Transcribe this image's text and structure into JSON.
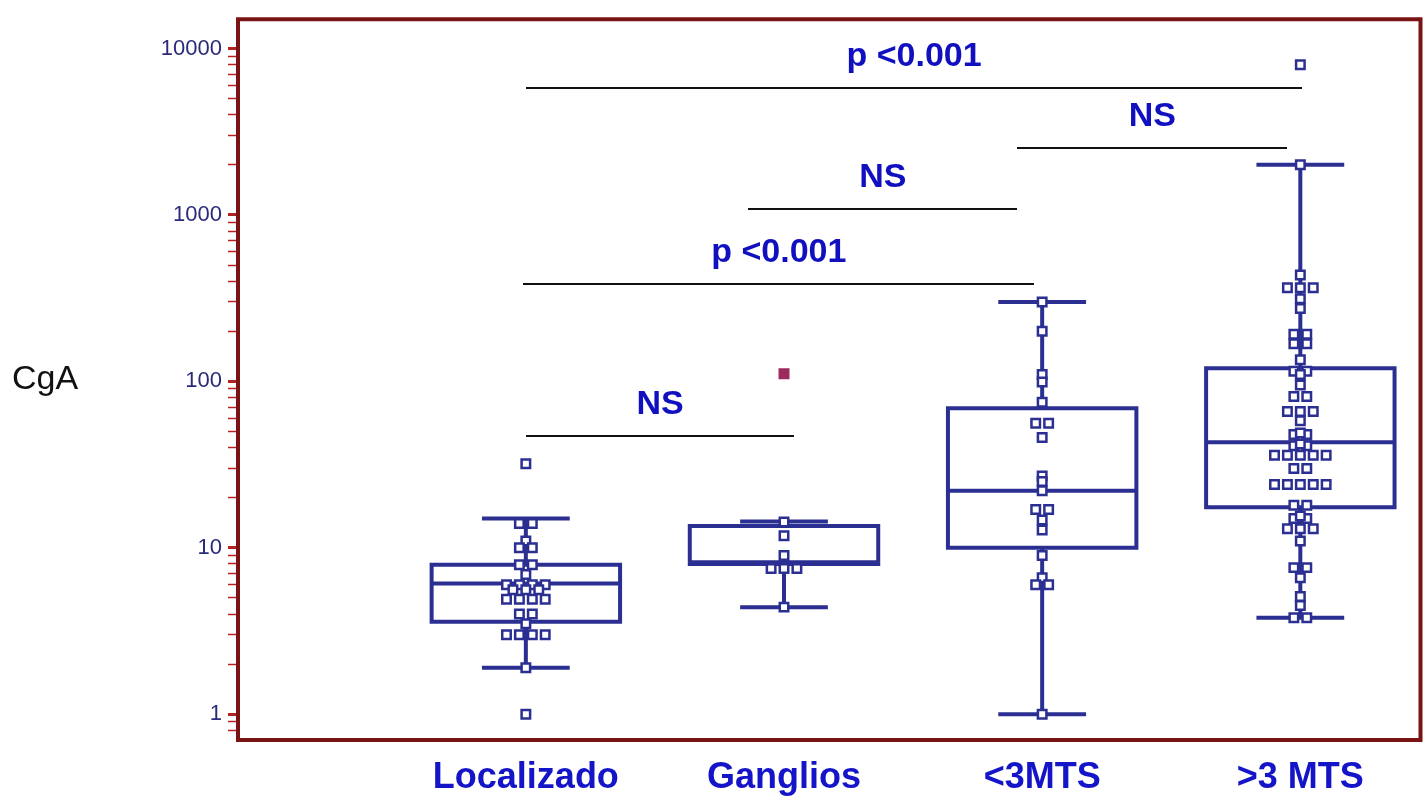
{
  "chart_data": {
    "type": "box",
    "ylabel": "CgA",
    "categories": [
      "Localizado",
      "Ganglios",
      "<3MTS",
      ">3 MTS"
    ],
    "color": "#2b2f91",
    "log": true,
    "marker": "square",
    "ylim": [
      0.7,
      15000
    ],
    "yticks": [
      {
        "value": 0.8,
        "label": null
      },
      {
        "value": 0.9,
        "label": null
      },
      1,
      {
        "value": 2,
        "label": null
      },
      {
        "value": 3,
        "label": null
      },
      {
        "value": 4,
        "label": null
      },
      {
        "value": 5,
        "label": null
      },
      {
        "value": 6,
        "label": null
      },
      {
        "value": 7,
        "label": null
      },
      {
        "value": 8,
        "label": null
      },
      {
        "value": 9,
        "label": null
      },
      10,
      {
        "value": 20,
        "label": null
      },
      {
        "value": 30,
        "label": null
      },
      {
        "value": 40,
        "label": null
      },
      {
        "value": 50,
        "label": null
      },
      {
        "value": 60,
        "label": null
      },
      {
        "value": 70,
        "label": null
      },
      {
        "value": 80,
        "label": null
      },
      {
        "value": 90,
        "label": null
      },
      100,
      {
        "value": 200,
        "label": null
      },
      {
        "value": 300,
        "label": null
      },
      {
        "value": 400,
        "label": null
      },
      {
        "value": 500,
        "label": null
      },
      {
        "value": 600,
        "label": null
      },
      {
        "value": 700,
        "label": null
      },
      {
        "value": 800,
        "label": null
      },
      {
        "value": 900,
        "label": null
      },
      1000,
      {
        "value": 2000,
        "label": null
      },
      {
        "value": 3000,
        "label": null
      },
      {
        "value": 4000,
        "label": null
      },
      {
        "value": 5000,
        "label": null
      },
      {
        "value": 6000,
        "label": null
      },
      {
        "value": 7000,
        "label": null
      },
      {
        "value": 8000,
        "label": null
      },
      {
        "value": 9000,
        "label": null
      },
      10000
    ],
    "boxes": [
      {
        "low": 1.9,
        "q1": 3.6,
        "median": 6.1,
        "q3": 7.9,
        "high": 15
      },
      {
        "low": 4.4,
        "q1": 8,
        "median": 8.2,
        "q3": 13.5,
        "high": 14.4
      },
      {
        "low": 1,
        "q1": 10,
        "median": 22,
        "q3": 69,
        "high": 300
      },
      {
        "low": 3.8,
        "q1": 17.5,
        "median": 43,
        "q3": 120,
        "high": 2000
      }
    ],
    "series": [
      {
        "type": "scatter",
        "color": "#2b2f91",
        "x": [
          "Localizado",
          "Localizado",
          "Localizado",
          "Localizado",
          "Localizado",
          "Localizado",
          "Localizado",
          "Localizado",
          "Localizado",
          "Localizado",
          "Localizado",
          "Localizado",
          "Localizado",
          "Localizado",
          "Localizado",
          "Localizado",
          "Localizado",
          "Localizado",
          "Localizado",
          "Localizado",
          "Localizado",
          "Localizado",
          "Localizado",
          "Localizado",
          "Localizado",
          "Localizado",
          "Localizado",
          "Localizado",
          "Localizado",
          "Ganglios",
          "Ganglios",
          "Ganglios",
          "Ganglios",
          "Ganglios",
          "Ganglios",
          "Ganglios",
          "<3MTS",
          "<3MTS",
          "<3MTS",
          "<3MTS",
          "<3MTS",
          "<3MTS",
          "<3MTS",
          "<3MTS",
          "<3MTS",
          "<3MTS",
          "<3MTS",
          "<3MTS",
          "<3MTS",
          "<3MTS",
          "<3MTS",
          "<3MTS",
          "<3MTS",
          "<3MTS",
          "<3MTS",
          "<3MTS",
          ">3 MTS",
          ">3 MTS",
          ">3 MTS",
          ">3 MTS",
          ">3 MTS",
          ">3 MTS",
          ">3 MTS",
          ">3 MTS",
          ">3 MTS",
          ">3 MTS",
          ">3 MTS",
          ">3 MTS",
          ">3 MTS",
          ">3 MTS",
          ">3 MTS",
          ">3 MTS",
          ">3 MTS",
          ">3 MTS",
          ">3 MTS",
          ">3 MTS",
          ">3 MTS",
          ">3 MTS",
          ">3 MTS",
          ">3 MTS",
          ">3 MTS",
          ">3 MTS",
          ">3 MTS",
          ">3 MTS",
          ">3 MTS",
          ">3 MTS",
          ">3 MTS",
          ">3 MTS",
          ">3 MTS",
          ">3 MTS",
          ">3 MTS",
          ">3 MTS",
          ">3 MTS",
          ">3 MTS",
          ">3 MTS",
          ">3 MTS",
          ">3 MTS",
          ">3 MTS",
          ">3 MTS",
          ">3 MTS",
          ">3 MTS",
          ">3 MTS",
          ">3 MTS",
          ">3 MTS",
          ">3 MTS",
          ">3 MTS",
          ">3 MTS",
          ">3 MTS",
          ">3 MTS",
          ">3 MTS",
          ">3 MTS",
          ">3 MTS",
          ">3 MTS"
        ],
        "values": [
          32,
          14,
          14,
          11,
          10,
          10,
          7.9,
          7.9,
          6.9,
          6,
          6,
          6,
          6,
          5.6,
          5.6,
          5.6,
          4.9,
          4.9,
          4.9,
          4.9,
          4,
          4,
          3.5,
          3,
          3,
          3,
          3,
          1.9,
          1,
          14.3,
          11.8,
          9,
          7.5,
          7.5,
          7.5,
          4.4,
          300,
          200,
          110,
          99,
          75,
          56,
          56,
          46,
          27,
          25,
          22,
          17,
          17,
          14.7,
          12.8,
          9,
          6.6,
          6,
          6,
          1,
          8000,
          2000,
          435,
          365,
          365,
          365,
          314,
          274,
          192,
          192,
          168,
          168,
          135,
          115,
          115,
          110,
          95,
          81,
          81,
          66,
          66,
          66,
          58,
          48,
          48,
          49,
          41,
          41,
          42,
          36,
          36,
          36,
          36,
          36,
          30,
          30,
          24,
          24,
          24,
          24,
          24,
          18,
          18,
          15,
          15,
          15.5,
          13,
          13,
          13,
          11,
          7.6,
          7.6,
          6.6,
          5.1,
          4.5,
          3.8,
          3.8
        ]
      },
      {
        "type": "scatter",
        "color": "#9e2a5c",
        "x": [
          "Ganglios"
        ],
        "values": [
          111
        ]
      }
    ],
    "annotations": [
      "p <0.001",
      "NS",
      "NS",
      "p <0.001",
      "NS"
    ]
  }
}
